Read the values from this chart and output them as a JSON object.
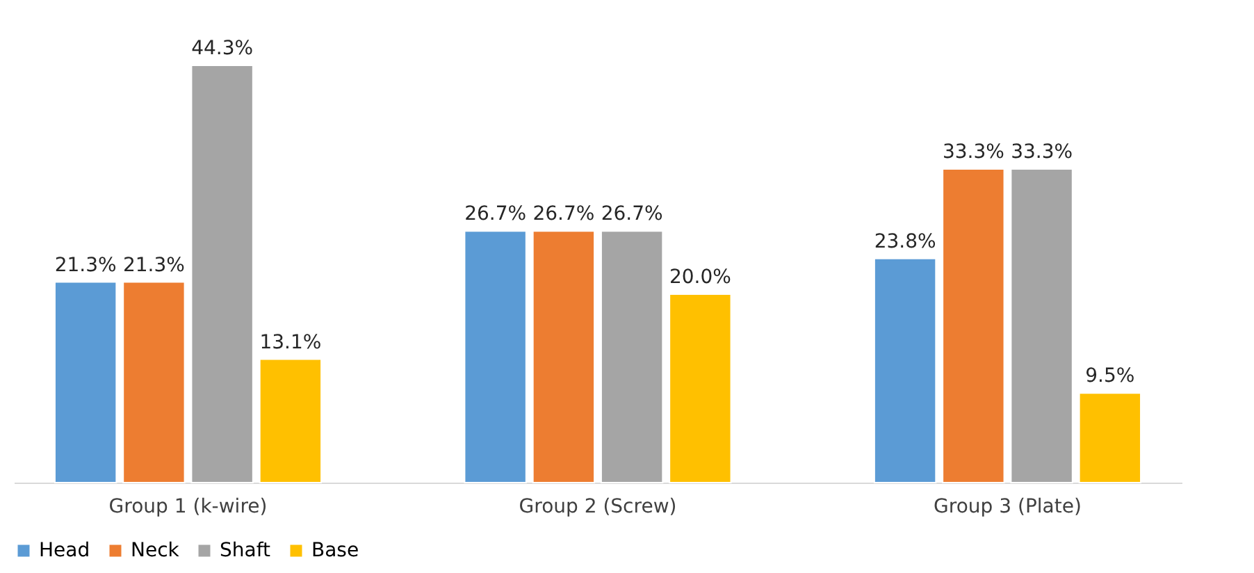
{
  "chart_data": {
    "type": "bar",
    "categories": [
      "Group 1 (k-wire)",
      "Group 2 (Screw)",
      "Group 3 (Plate)"
    ],
    "series": [
      {
        "name": "Head",
        "color": "#5b9bd5",
        "values": [
          21.3,
          26.7,
          23.8
        ],
        "value_labels": [
          "21.3%",
          "26.7%",
          "23.8%"
        ]
      },
      {
        "name": "Neck",
        "color": "#ed7d31",
        "values": [
          21.3,
          26.7,
          33.3
        ],
        "value_labels": [
          "21.3%",
          "26.7%",
          "33.3%"
        ]
      },
      {
        "name": "Shaft",
        "color": "#a5a5a5",
        "values": [
          44.3,
          26.7,
          33.3
        ],
        "value_labels": [
          "44.3%",
          "26.7%",
          "33.3%"
        ]
      },
      {
        "name": "Base",
        "color": "#ffc000",
        "values": [
          13.1,
          20.0,
          9.5
        ],
        "value_labels": [
          "13.1%",
          "20.0%",
          "9.5%"
        ]
      }
    ],
    "legend": "bottom",
    "grid": false
  }
}
